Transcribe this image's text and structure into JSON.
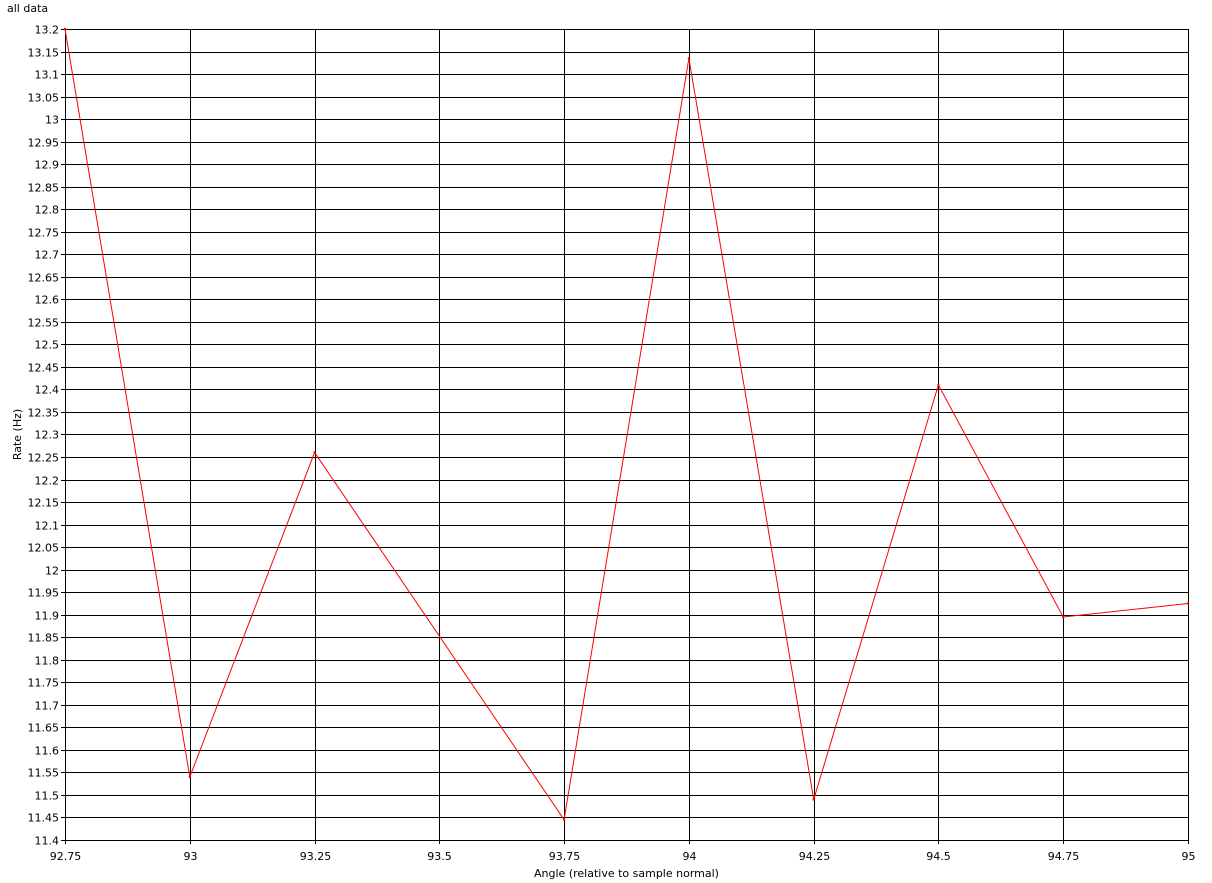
{
  "chart_data": {
    "type": "line",
    "title": "all data",
    "xlabel": "Angle (relative to sample normal)",
    "ylabel": "Rate (Hz)",
    "xlim": [
      92.75,
      95
    ],
    "ylim": [
      11.4,
      13.2
    ],
    "x_ticks": [
      "92.75",
      "93",
      "93.25",
      "93.5",
      "93.75",
      "94",
      "94.25",
      "94.5",
      "94.75",
      "95"
    ],
    "y_ticks": [
      "11.4",
      "11.45",
      "11.5",
      "11.55",
      "11.6",
      "11.65",
      "11.7",
      "11.75",
      "11.8",
      "11.85",
      "11.9",
      "11.95",
      "12",
      "12.05",
      "12.1",
      "12.15",
      "12.2",
      "12.25",
      "12.3",
      "12.35",
      "12.4",
      "12.45",
      "12.5",
      "12.55",
      "12.6",
      "12.65",
      "12.7",
      "12.75",
      "12.8",
      "12.85",
      "12.9",
      "12.95",
      "13",
      "13.05",
      "13.1",
      "13.15",
      "13.2"
    ],
    "grid": true,
    "legend": "none",
    "series": [
      {
        "color": "#ff0000",
        "x": [
          92.75,
          93,
          93.25,
          93.75,
          94,
          94.25,
          94.5,
          94.75,
          95
        ],
        "y": [
          13.2,
          11.54,
          12.26,
          11.445,
          13.135,
          11.49,
          12.41,
          11.895,
          11.925
        ]
      }
    ]
  },
  "colors": {
    "background": "#ffffff",
    "grid": "#000000",
    "series": "#ff0000"
  }
}
